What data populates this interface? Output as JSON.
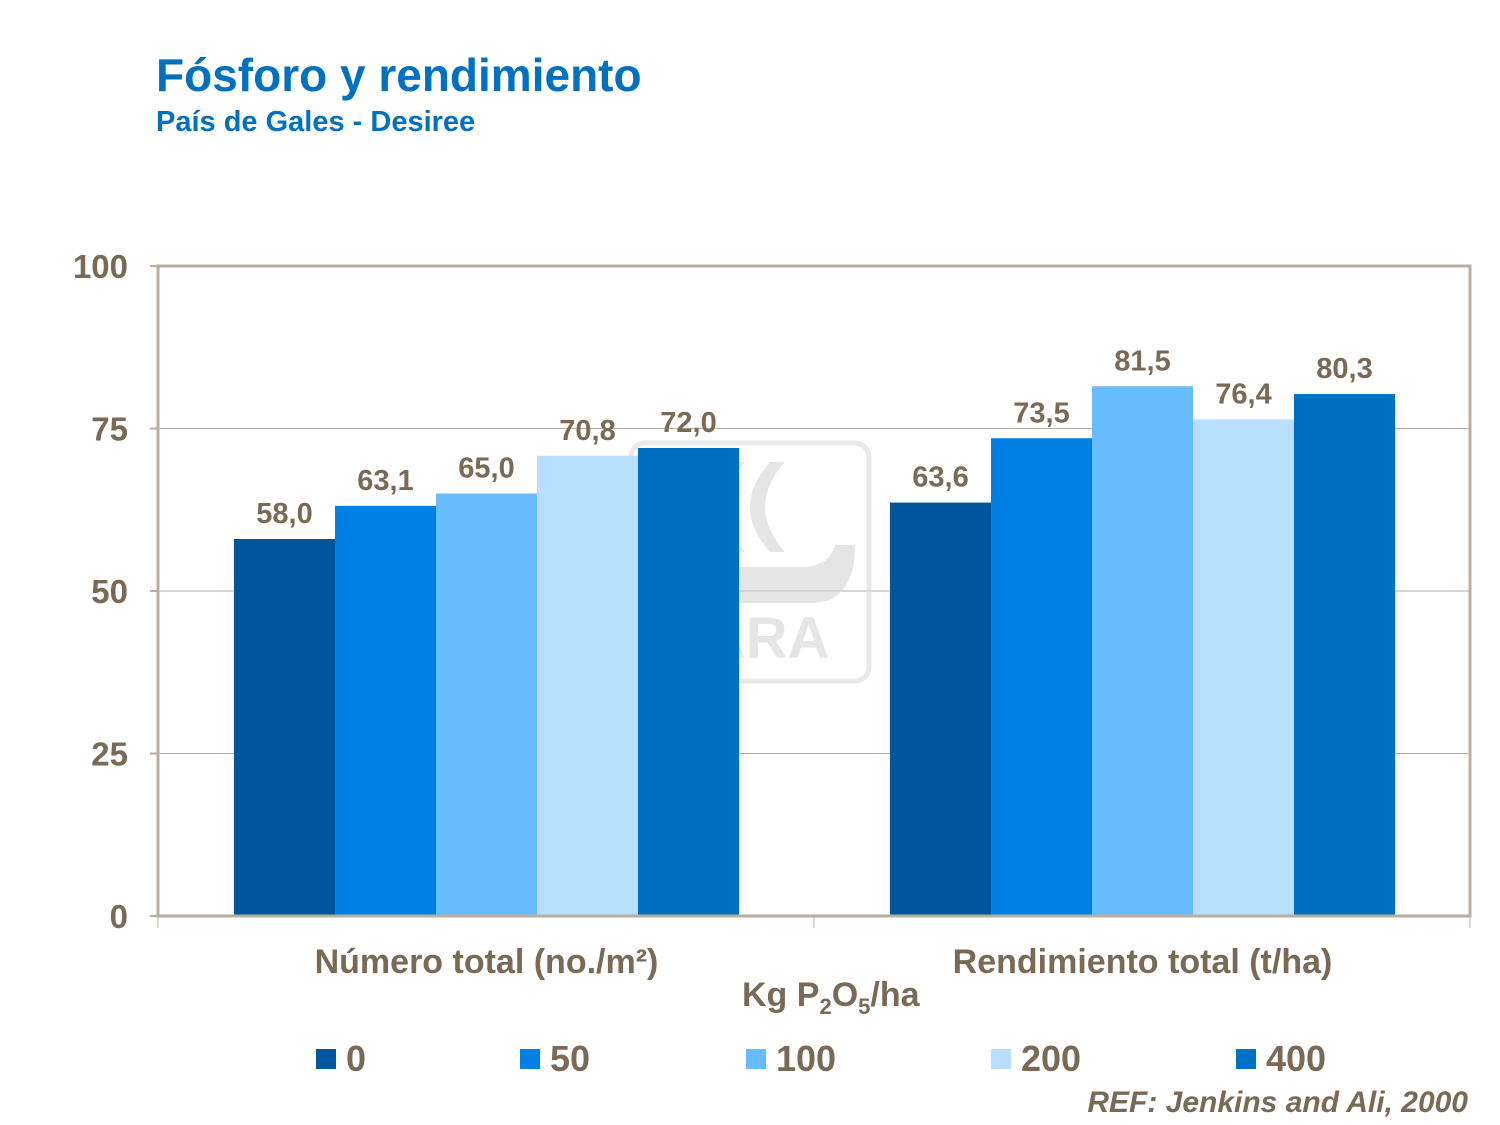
{
  "header": {
    "title": "Fósforo y rendimiento",
    "subtitle": "País de Gales - Desiree"
  },
  "watermark": {
    "text": "YARA"
  },
  "reference": "REF: Jenkins and Ali, 2000",
  "chart_data": {
    "type": "bar",
    "title": "Fósforo y rendimiento",
    "subtitle": "País de Gales - Desiree",
    "categories": [
      "Número total (no./m²)",
      "Rendimiento total (t/ha)"
    ],
    "xlabel_parts": {
      "pre": "Kg P",
      "sub1": "2",
      "mid": "O",
      "sub2": "5",
      "post": "/ha"
    },
    "xlabel": "Kg P2O5/ha",
    "ylim": [
      0,
      100
    ],
    "yticks": [
      0,
      25,
      50,
      75,
      100
    ],
    "grid": true,
    "legend_position": "bottom",
    "series": [
      {
        "name": "0",
        "color": "#00569a",
        "values": [
          58.0,
          63.6
        ],
        "labels": [
          "58,0",
          "63,6"
        ]
      },
      {
        "name": "50",
        "color": "#0080e4",
        "values": [
          63.1,
          73.5
        ],
        "labels": [
          "63,1",
          "73,5"
        ]
      },
      {
        "name": "100",
        "color": "#66bcff",
        "values": [
          65.0,
          81.5
        ],
        "labels": [
          "65,0",
          "81,5"
        ]
      },
      {
        "name": "200",
        "color": "#b8dfff",
        "values": [
          70.8,
          76.4
        ],
        "labels": [
          "70,8",
          "76,4"
        ]
      },
      {
        "name": "400",
        "color": "#0070c0",
        "values": [
          72.0,
          80.3
        ],
        "labels": [
          "72,0",
          "80,3"
        ]
      }
    ]
  }
}
